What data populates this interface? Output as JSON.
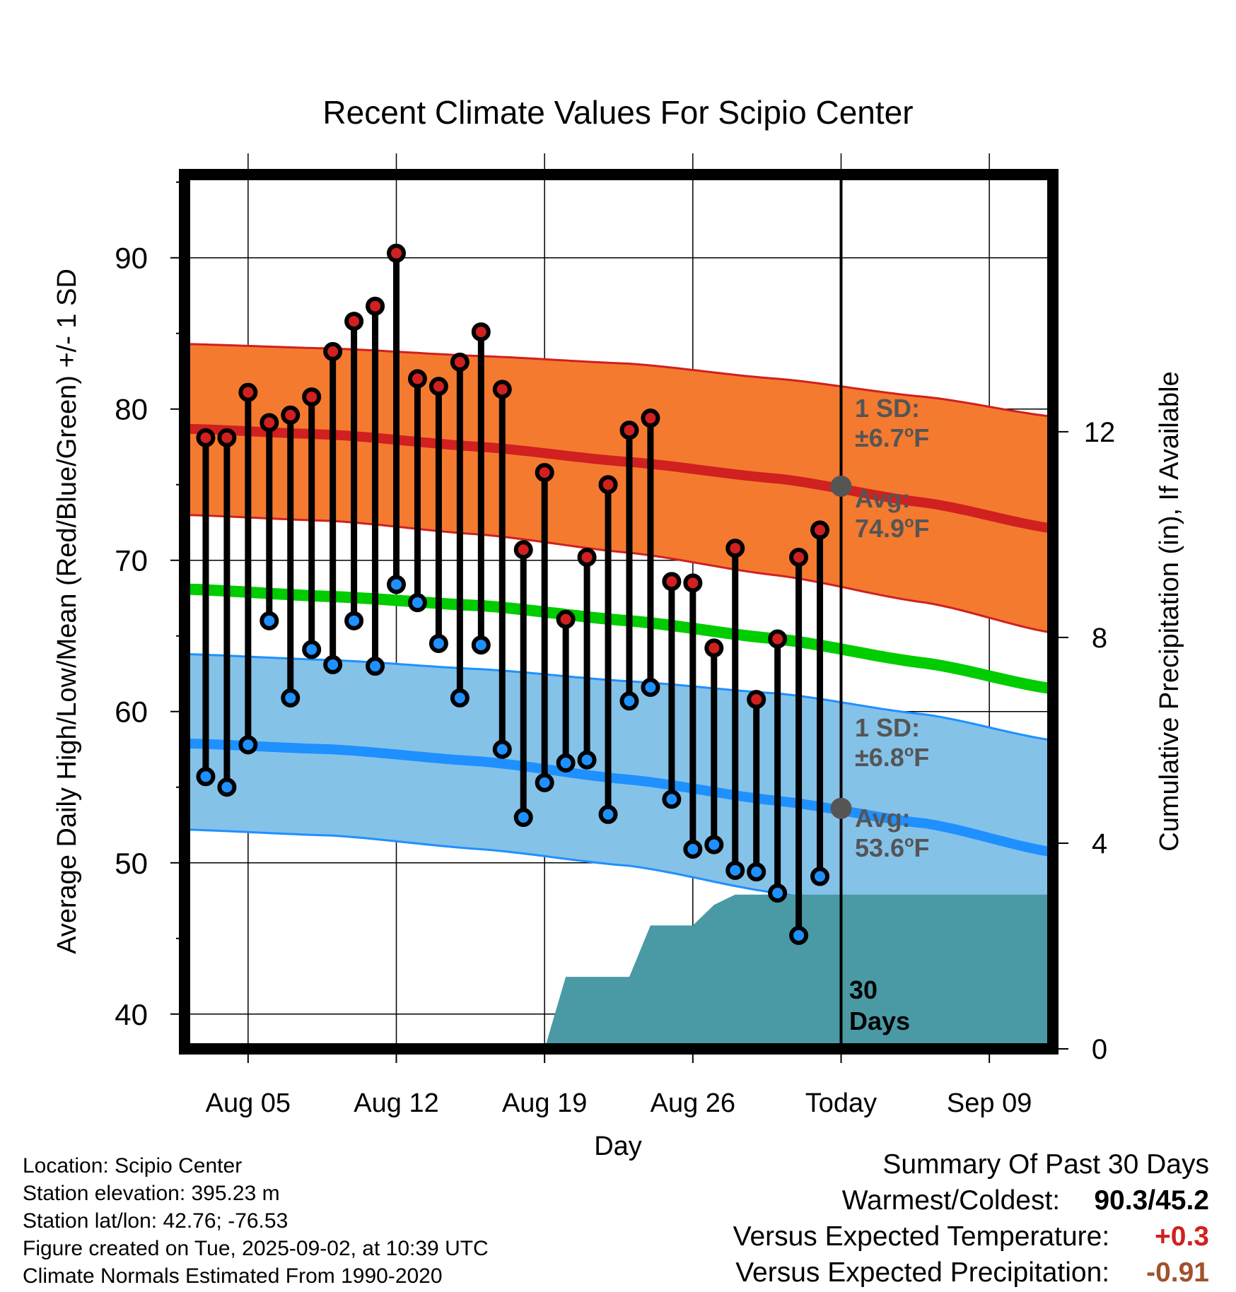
{
  "colors": {
    "high_marker": "#d02020",
    "low_marker": "#1e90ff",
    "mean_line": "#00cc00",
    "high_band": "#f47a30",
    "high_band_edge": "#d02020",
    "low_band": "#85c2e8",
    "low_band_edge": "#1e90ff",
    "high_avg_line": "#d02020",
    "low_avg_line": "#1e90ff",
    "precip_fill": "#4a9aa5",
    "annotation_gray": "#555555",
    "warm_value": "#d02020",
    "precip_value": "#a0522d"
  },
  "chart_data": {
    "type": "line",
    "title": "Recent Climate Values For Scipio Center",
    "xlabel": "Day",
    "ylabel": "Average Daily High/Low/Mean (Red/Blue/Green) +/- 1 SD",
    "y2label": "Cumulative Precipitation (in), If Available",
    "x_start": "2025-08-02",
    "x_end": "2025-09-12",
    "x_tick_labels": [
      "Aug 05",
      "Aug 12",
      "Aug 19",
      "Aug 26",
      "Today",
      "Sep 09"
    ],
    "x_tick_dates": [
      "2025-08-05",
      "2025-08-12",
      "2025-08-19",
      "2025-08-26",
      "2025-09-02",
      "2025-09-09"
    ],
    "ylim": [
      37.7,
      95.5
    ],
    "y_ticks": [
      40,
      50,
      60,
      70,
      80,
      90
    ],
    "y_minor_ticks": [
      45,
      55,
      65,
      75,
      85,
      95
    ],
    "y2lim": [
      0,
      17.0
    ],
    "y2_ticks": [
      0,
      4,
      8,
      12
    ],
    "grid": true,
    "today": "2025-09-02",
    "daily": {
      "dates": [
        "2025-08-03",
        "2025-08-04",
        "2025-08-05",
        "2025-08-06",
        "2025-08-07",
        "2025-08-08",
        "2025-08-09",
        "2025-08-10",
        "2025-08-11",
        "2025-08-12",
        "2025-08-13",
        "2025-08-14",
        "2025-08-15",
        "2025-08-16",
        "2025-08-17",
        "2025-08-18",
        "2025-08-19",
        "2025-08-20",
        "2025-08-21",
        "2025-08-22",
        "2025-08-23",
        "2025-08-24",
        "2025-08-25",
        "2025-08-26",
        "2025-08-27",
        "2025-08-28",
        "2025-08-29",
        "2025-08-30",
        "2025-08-31",
        "2025-09-01"
      ],
      "high": [
        78.1,
        78.1,
        81.1,
        79.1,
        79.6,
        80.8,
        83.8,
        85.8,
        86.8,
        90.3,
        82.0,
        81.5,
        83.1,
        85.1,
        81.3,
        70.7,
        75.8,
        66.1,
        70.2,
        75.0,
        78.6,
        79.4,
        68.6,
        68.5,
        64.2,
        70.8,
        60.8,
        64.8,
        70.2,
        72.0
      ],
      "low": [
        55.7,
        55.0,
        57.8,
        66.0,
        60.9,
        64.1,
        63.1,
        66.0,
        63.0,
        68.4,
        67.2,
        64.5,
        60.9,
        64.4,
        57.5,
        53.0,
        55.3,
        56.6,
        56.8,
        53.2,
        60.7,
        61.6,
        54.2,
        50.9,
        51.2,
        49.5,
        49.4,
        48.0,
        45.2,
        49.1
      ]
    },
    "normals": {
      "dates": [
        "2025-08-02",
        "2025-08-09",
        "2025-08-16",
        "2025-08-23",
        "2025-08-30",
        "2025-09-06",
        "2025-09-12"
      ],
      "mean": [
        68.1,
        67.6,
        67.0,
        66.0,
        64.8,
        63.2,
        61.5
      ],
      "high_avg": [
        78.7,
        78.3,
        77.5,
        76.5,
        75.4,
        73.8,
        72.1
      ],
      "high_upper": [
        84.3,
        84.0,
        83.5,
        83.0,
        82.0,
        80.8,
        79.5
      ],
      "high_lower": [
        73.0,
        72.6,
        71.7,
        70.5,
        69.0,
        67.2,
        65.2
      ],
      "low_avg": [
        57.9,
        57.5,
        56.7,
        55.5,
        54.1,
        52.6,
        50.7
      ],
      "low_upper": [
        63.8,
        63.4,
        62.8,
        62.0,
        61.2,
        59.8,
        58.1
      ],
      "low_lower": [
        52.2,
        51.8,
        50.9,
        49.8,
        48.0,
        46.0,
        43.8
      ]
    },
    "today_high_avg": 74.9,
    "today_low_avg": 53.6,
    "precip_cumulative": {
      "dates": [
        "2025-08-19",
        "2025-08-20",
        "2025-08-23",
        "2025-08-24",
        "2025-08-26",
        "2025-08-27",
        "2025-08-28",
        "2025-09-12"
      ],
      "values": [
        0.0,
        1.4,
        1.4,
        2.4,
        2.4,
        2.8,
        3.0,
        3.0
      ]
    }
  },
  "annotations": {
    "high_sd_line1": "1 SD:",
    "high_sd_line2": "±6.7",
    "high_sd_unit": "F",
    "high_avg_line1": "Avg:",
    "high_avg_line2": "74.9",
    "high_avg_unit": "F",
    "low_sd_line1": "1 SD:",
    "low_sd_line2": "±6.8",
    "low_sd_unit": "F",
    "low_avg_line1": "Avg:",
    "low_avg_line2": "53.6",
    "low_avg_unit": "F",
    "degree_symbol": "o",
    "days_line1": "30",
    "days_line2": "Days"
  },
  "footer": {
    "location": "Location: Scipio Center",
    "elevation": "Station elevation: 395.23 m",
    "latlon": "Station lat/lon: 42.76; -76.53",
    "created": "Figure created on Tue, 2025-09-02, at 10:39 UTC",
    "normals": "Climate Normals Estimated From 1990-2020"
  },
  "summary": {
    "title": "Summary Of Past 30 Days",
    "warm_cold_label": "Warmest/Coldest:",
    "warm_cold_value": "90.3/45.2",
    "temp_label": "Versus Expected Temperature:",
    "temp_value": "+0.3",
    "precip_label": "Versus Expected Precipitation:",
    "precip_value": "-0.91"
  }
}
